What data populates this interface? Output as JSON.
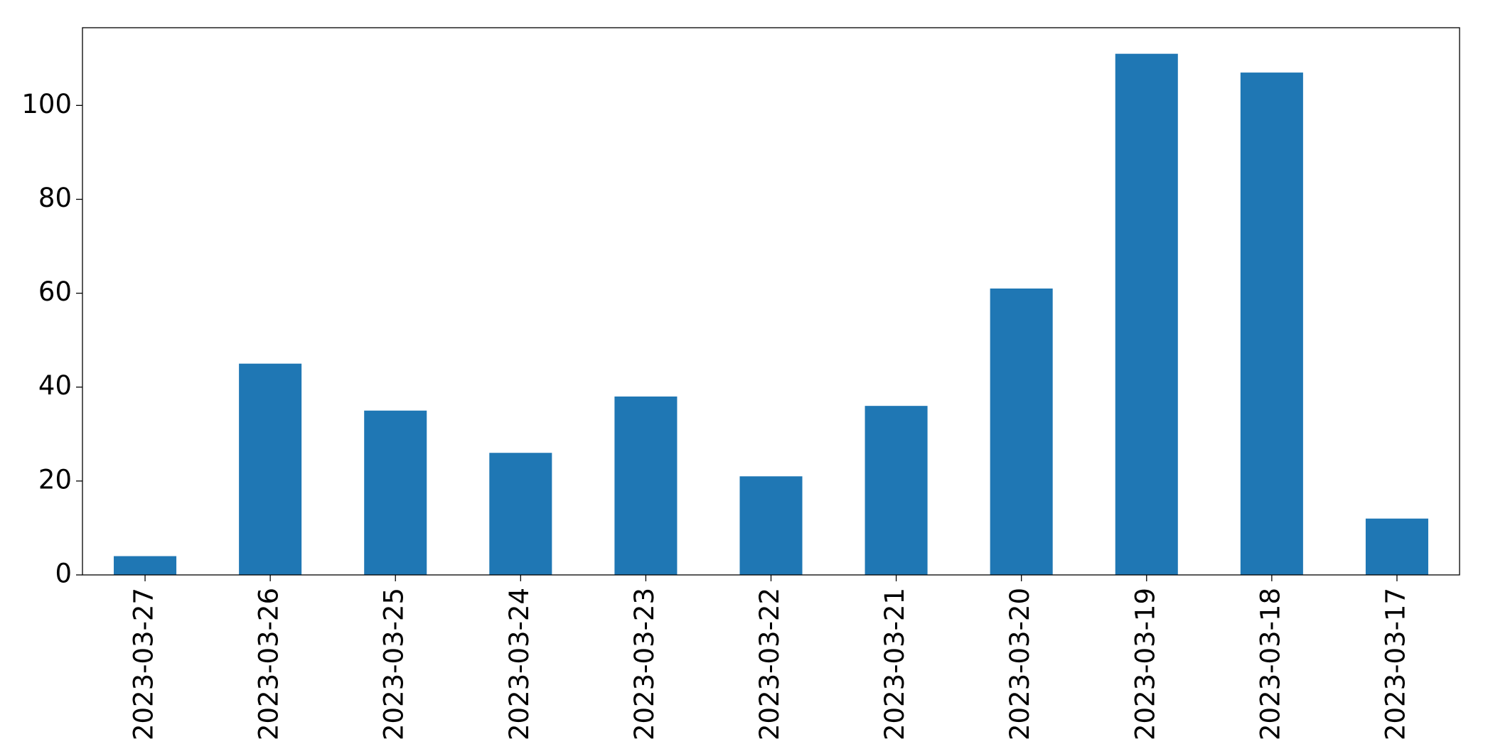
{
  "chart_data": {
    "type": "bar",
    "categories": [
      "2023-03-27",
      "2023-03-26",
      "2023-03-25",
      "2023-03-24",
      "2023-03-23",
      "2023-03-22",
      "2023-03-21",
      "2023-03-20",
      "2023-03-19",
      "2023-03-18",
      "2023-03-17"
    ],
    "values": [
      4,
      45,
      35,
      26,
      38,
      21,
      36,
      61,
      111,
      107,
      12
    ],
    "color": "#1f77b4",
    "ylim": [
      0,
      116.55
    ],
    "yticks": [
      0,
      20,
      40,
      60,
      80,
      100
    ],
    "grid": false
  }
}
